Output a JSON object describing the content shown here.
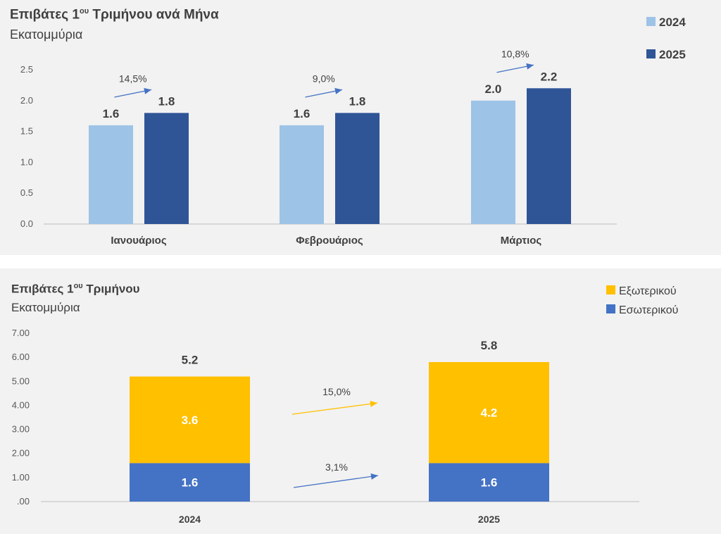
{
  "chart_data": [
    {
      "type": "bar",
      "title_main": "Επιβάτες 1",
      "title_sup": "ου",
      "title_rest": " Τριμήνου ανά Μήνα",
      "subtitle": "Εκατομμύρια",
      "categories": [
        "Ιανουάριος",
        "Φεβρουάριος",
        "Μάρτιος"
      ],
      "series": [
        {
          "name": "2024",
          "values": [
            1.6,
            1.6,
            2.0
          ],
          "color": "#9dc3e6"
        },
        {
          "name": "2025",
          "values": [
            1.8,
            1.8,
            2.2
          ],
          "color": "#2f5597"
        }
      ],
      "value_labels": {
        "2024": [
          "1.6",
          "1.6",
          "2.0"
        ],
        "2025": [
          "1.8",
          "1.8",
          "2.2"
        ]
      },
      "growth_labels": [
        "14,5%",
        "9,0%",
        "10,8%"
      ],
      "yticks": [
        "0.0",
        "0.5",
        "1.0",
        "1.5",
        "2.0",
        "2.5"
      ],
      "ylim": [
        0,
        2.5
      ],
      "legend": "top-right",
      "grid": false
    },
    {
      "type": "bar",
      "stacked": true,
      "title_main": "Επιβάτες 1",
      "title_sup": "ου",
      "title_rest": " Τριμήνου",
      "subtitle": "Εκατομμύρια",
      "categories": [
        "2024",
        "2025"
      ],
      "series": [
        {
          "name": "Εσωτερικού",
          "values": [
            1.6,
            1.6
          ],
          "labels": [
            "1.6",
            "1.6"
          ],
          "color": "#4472c4"
        },
        {
          "name": "Εξωτερικού",
          "values": [
            3.6,
            4.2
          ],
          "labels": [
            "3.6",
            "4.2"
          ],
          "color": "#ffc000"
        }
      ],
      "totals": [
        "5.2",
        "5.8"
      ],
      "growth_labels": {
        "Εξωτερικού": "15,0%",
        "Εσωτερικού": "3,1%"
      },
      "yticks": [
        ".00",
        "1.00",
        "2.00",
        "3.00",
        "4.00",
        "5.00",
        "6.00",
        "7.00"
      ],
      "ylim": [
        0,
        7
      ],
      "legend": "top-right",
      "grid": false
    }
  ]
}
